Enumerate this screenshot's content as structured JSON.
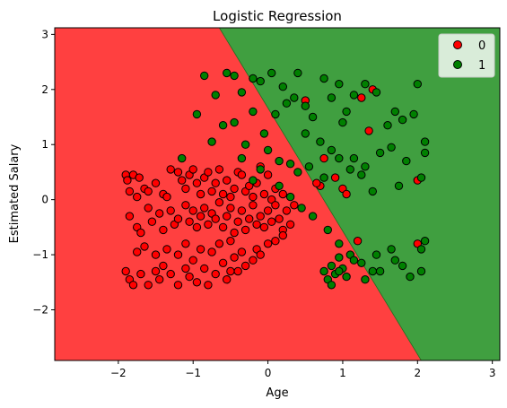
{
  "chart_data": {
    "type": "scatter",
    "title": "Logistic Regression",
    "xlabel": "Age",
    "ylabel": "Estimated Salary",
    "xlim": [
      -2.85,
      3.1
    ],
    "ylim": [
      -2.92,
      3.12
    ],
    "x_ticks": [
      -2,
      -1,
      0,
      1,
      2,
      3
    ],
    "x_tick_labels": [
      "−2",
      "−1",
      "0",
      "1",
      "2",
      "3"
    ],
    "y_ticks": [
      -2,
      -1,
      0,
      1,
      2,
      3
    ],
    "y_tick_labels": [
      "−2",
      "−1",
      "0",
      "1",
      "2",
      "3"
    ],
    "grid": false,
    "legend_position": "top-right",
    "decision_boundary": {
      "description": "linear boundary separating red region (class 0) from green region (class 1)",
      "points": [
        [
          -0.65,
          3.12
        ],
        [
          2.05,
          -2.92
        ]
      ],
      "region_colors": {
        "0": "#ff4040",
        "1": "#409f40"
      }
    },
    "series": [
      {
        "name": "0",
        "color": "#ff0000",
        "points": [
          [
            -1.9,
            0.45
          ],
          [
            -1.88,
            0.35
          ],
          [
            -1.85,
            0.15
          ],
          [
            -1.8,
            0.45
          ],
          [
            -1.75,
            0.05
          ],
          [
            -1.72,
            0.4
          ],
          [
            -1.65,
            0.2
          ],
          [
            -1.6,
            0.15
          ],
          [
            -1.5,
            0.3
          ],
          [
            -1.4,
            0.1
          ],
          [
            -1.35,
            0.05
          ],
          [
            -1.3,
            0.55
          ],
          [
            -1.2,
            0.5
          ],
          [
            -1.15,
            0.35
          ],
          [
            -1.1,
            0.2
          ],
          [
            -1.05,
            0.45
          ],
          [
            -1.0,
            0.55
          ],
          [
            -0.95,
            0.3
          ],
          [
            -0.9,
            0.1
          ],
          [
            -0.85,
            0.4
          ],
          [
            -0.8,
            0.5
          ],
          [
            -0.75,
            0.15
          ],
          [
            -0.7,
            0.3
          ],
          [
            -0.65,
            0.55
          ],
          [
            -0.6,
            0.1
          ],
          [
            -0.55,
            0.35
          ],
          [
            -0.5,
            0.05
          ],
          [
            -0.45,
            0.2
          ],
          [
            -0.4,
            0.5
          ],
          [
            -0.35,
            0.45
          ],
          [
            -0.3,
            0.15
          ],
          [
            -0.25,
            0.25
          ],
          [
            -0.2,
            0.05
          ],
          [
            -0.15,
            0.3
          ],
          [
            -0.1,
            0.6
          ],
          [
            -0.05,
            0.1
          ],
          [
            0.0,
            0.45
          ],
          [
            0.05,
            0.0
          ],
          [
            0.1,
            0.2
          ],
          [
            0.2,
            0.1
          ],
          [
            -1.85,
            -0.3
          ],
          [
            -1.75,
            -0.5
          ],
          [
            -1.7,
            -0.6
          ],
          [
            -1.6,
            -0.15
          ],
          [
            -1.55,
            -0.4
          ],
          [
            -1.45,
            -0.25
          ],
          [
            -1.4,
            -0.55
          ],
          [
            -1.3,
            -0.2
          ],
          [
            -1.25,
            -0.45
          ],
          [
            -1.2,
            -0.35
          ],
          [
            -1.1,
            -0.1
          ],
          [
            -1.05,
            -0.4
          ],
          [
            -1.0,
            -0.2
          ],
          [
            -0.95,
            -0.5
          ],
          [
            -0.9,
            -0.3
          ],
          [
            -0.85,
            -0.15
          ],
          [
            -0.8,
            -0.45
          ],
          [
            -0.75,
            -0.25
          ],
          [
            -0.7,
            -0.35
          ],
          [
            -0.65,
            -0.05
          ],
          [
            -0.6,
            -0.5
          ],
          [
            -0.55,
            -0.3
          ],
          [
            -0.5,
            -0.15
          ],
          [
            -0.45,
            -0.6
          ],
          [
            -0.4,
            -0.4
          ],
          [
            -0.35,
            -0.2
          ],
          [
            -0.3,
            -0.55
          ],
          [
            -0.25,
            -0.35
          ],
          [
            -0.2,
            -0.1
          ],
          [
            -0.15,
            -0.45
          ],
          [
            -0.1,
            -0.3
          ],
          [
            -0.05,
            -0.5
          ],
          [
            0.0,
            -0.2
          ],
          [
            0.05,
            -0.4
          ],
          [
            0.1,
            -0.1
          ],
          [
            0.15,
            -0.35
          ],
          [
            0.2,
            -0.55
          ],
          [
            0.25,
            -0.2
          ],
          [
            0.3,
            -0.45
          ],
          [
            0.35,
            -0.1
          ],
          [
            -1.9,
            -1.3
          ],
          [
            -1.85,
            -1.45
          ],
          [
            -1.8,
            -1.55
          ],
          [
            -1.7,
            -1.35
          ],
          [
            -1.6,
            -1.55
          ],
          [
            -1.5,
            -1.3
          ],
          [
            -1.45,
            -1.45
          ],
          [
            -1.4,
            -1.2
          ],
          [
            -1.3,
            -1.35
          ],
          [
            -1.2,
            -1.55
          ],
          [
            -1.1,
            -1.25
          ],
          [
            -1.05,
            -1.4
          ],
          [
            -1.0,
            -1.1
          ],
          [
            -0.95,
            -1.5
          ],
          [
            -0.85,
            -1.25
          ],
          [
            -0.8,
            -1.55
          ],
          [
            -0.7,
            -1.35
          ],
          [
            -0.6,
            -1.15
          ],
          [
            -0.55,
            -1.45
          ],
          [
            -0.5,
            -1.3
          ],
          [
            -0.45,
            -1.05
          ],
          [
            -0.4,
            -1.3
          ],
          [
            -0.35,
            -0.95
          ],
          [
            -0.3,
            -1.2
          ],
          [
            -0.2,
            -1.1
          ],
          [
            -0.15,
            -0.9
          ],
          [
            -0.1,
            -1.0
          ],
          [
            0.0,
            -0.8
          ],
          [
            0.1,
            -0.75
          ],
          [
            0.2,
            -0.65
          ],
          [
            -1.75,
            -0.95
          ],
          [
            -1.65,
            -0.85
          ],
          [
            -1.5,
            -1.0
          ],
          [
            -1.35,
            -0.9
          ],
          [
            -1.2,
            -1.0
          ],
          [
            -1.1,
            -0.8
          ],
          [
            -0.9,
            -0.9
          ],
          [
            -0.75,
            -0.95
          ],
          [
            -0.65,
            -0.8
          ],
          [
            -0.5,
            -0.75
          ],
          [
            0.5,
            1.8
          ],
          [
            1.25,
            1.85
          ],
          [
            1.35,
            1.25
          ],
          [
            1.4,
            2.0
          ],
          [
            0.75,
            0.75
          ],
          [
            0.9,
            0.4
          ],
          [
            1.0,
            0.2
          ],
          [
            1.05,
            0.1
          ],
          [
            0.7,
            0.25
          ],
          [
            2.0,
            0.35
          ],
          [
            1.2,
            -0.75
          ],
          [
            2.0,
            -0.8
          ],
          [
            0.65,
            0.3
          ]
        ]
      },
      {
        "name": "1",
        "color": "#008000",
        "points": [
          [
            -0.85,
            2.25
          ],
          [
            -0.7,
            1.9
          ],
          [
            -0.55,
            2.3
          ],
          [
            -0.45,
            2.25
          ],
          [
            -0.35,
            1.95
          ],
          [
            -0.2,
            2.2
          ],
          [
            -0.1,
            2.15
          ],
          [
            0.05,
            2.3
          ],
          [
            0.2,
            2.05
          ],
          [
            0.35,
            1.85
          ],
          [
            -0.95,
            1.55
          ],
          [
            -0.75,
            1.05
          ],
          [
            -0.6,
            1.35
          ],
          [
            -0.45,
            1.4
          ],
          [
            -0.3,
            1.0
          ],
          [
            -0.2,
            1.6
          ],
          [
            -0.05,
            1.2
          ],
          [
            0.1,
            1.55
          ],
          [
            0.25,
            1.75
          ],
          [
            0.4,
            2.3
          ],
          [
            0.5,
            1.7
          ],
          [
            0.6,
            1.5
          ],
          [
            0.75,
            2.2
          ],
          [
            0.85,
            1.85
          ],
          [
            0.95,
            2.1
          ],
          [
            1.05,
            1.6
          ],
          [
            1.15,
            1.9
          ],
          [
            1.3,
            2.1
          ],
          [
            1.45,
            1.95
          ],
          [
            1.6,
            1.35
          ],
          [
            1.7,
            1.6
          ],
          [
            1.8,
            1.45
          ],
          [
            1.95,
            1.55
          ],
          [
            2.0,
            2.1
          ],
          [
            2.1,
            1.05
          ],
          [
            0.5,
            1.2
          ],
          [
            0.7,
            1.05
          ],
          [
            0.85,
            0.9
          ],
          [
            1.0,
            1.4
          ],
          [
            1.15,
            0.75
          ],
          [
            1.3,
            0.6
          ],
          [
            1.5,
            0.85
          ],
          [
            1.65,
            0.95
          ],
          [
            1.85,
            0.7
          ],
          [
            2.05,
            0.4
          ],
          [
            2.1,
            0.85
          ],
          [
            1.75,
            0.25
          ],
          [
            1.4,
            0.15
          ],
          [
            1.25,
            0.45
          ],
          [
            1.1,
            0.55
          ],
          [
            0.95,
            0.75
          ],
          [
            0.75,
            0.4
          ],
          [
            0.55,
            0.6
          ],
          [
            0.4,
            0.5
          ],
          [
            0.3,
            0.65
          ],
          [
            0.15,
            0.7
          ],
          [
            0.0,
            0.9
          ],
          [
            -0.1,
            0.55
          ],
          [
            -0.2,
            0.35
          ],
          [
            -0.35,
            0.75
          ],
          [
            -1.15,
            0.75
          ],
          [
            0.15,
            0.25
          ],
          [
            0.3,
            0.05
          ],
          [
            0.45,
            -0.15
          ],
          [
            0.6,
            -0.3
          ],
          [
            0.8,
            -0.55
          ],
          [
            0.95,
            -0.8
          ],
          [
            1.1,
            -1.0
          ],
          [
            1.25,
            -1.15
          ],
          [
            1.4,
            -1.3
          ],
          [
            0.75,
            -1.3
          ],
          [
            0.8,
            -1.45
          ],
          [
            0.85,
            -1.2
          ],
          [
            0.9,
            -1.35
          ],
          [
            0.95,
            -1.05
          ],
          [
            1.0,
            -1.25
          ],
          [
            1.05,
            -1.4
          ],
          [
            1.15,
            -1.1
          ],
          [
            1.3,
            -1.45
          ],
          [
            1.5,
            -1.3
          ],
          [
            1.65,
            -0.9
          ],
          [
            1.8,
            -1.2
          ],
          [
            1.9,
            -1.4
          ],
          [
            2.05,
            -1.3
          ],
          [
            2.1,
            -0.75
          ],
          [
            0.85,
            -1.55
          ],
          [
            0.95,
            -1.3
          ],
          [
            1.7,
            -1.1
          ],
          [
            1.45,
            -1.0
          ],
          [
            2.05,
            -0.9
          ]
        ]
      }
    ]
  }
}
